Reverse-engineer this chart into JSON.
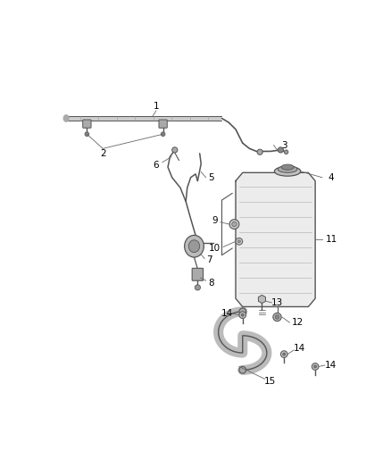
{
  "bg_color": "#ffffff",
  "fig_width": 4.38,
  "fig_height": 5.33,
  "dpi": 100,
  "part_color": "#555555",
  "label_color": "#000000",
  "line_color": "#444444"
}
